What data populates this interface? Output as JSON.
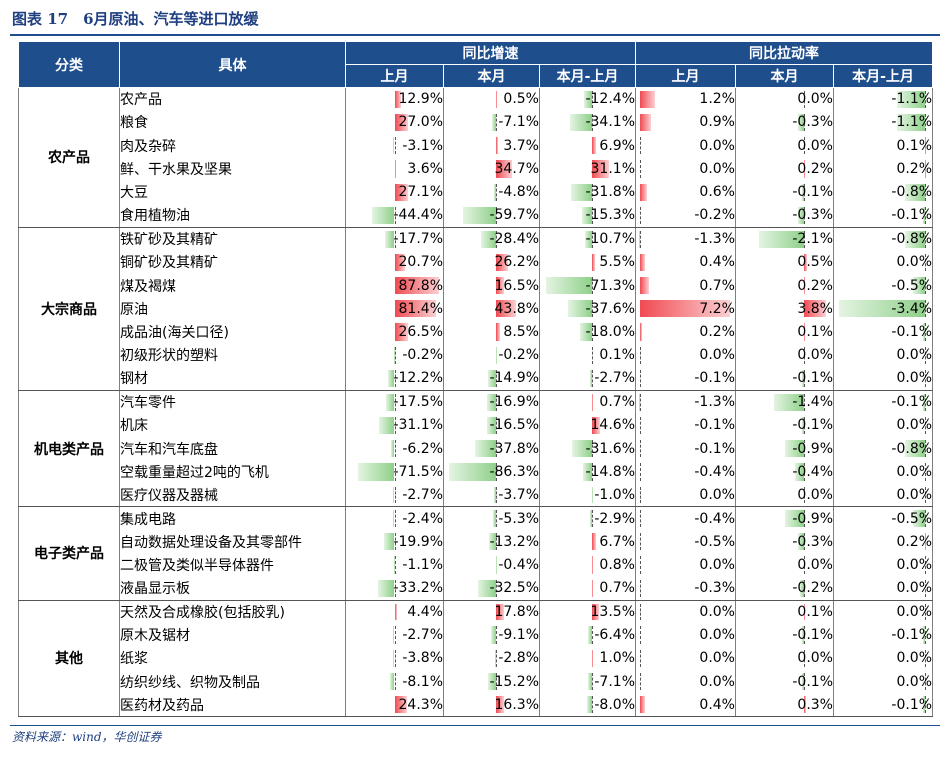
{
  "title": "图表 17　6月原油、汽车等进口放缓",
  "source": "资料来源：wind，华创证券",
  "colors": {
    "header_bg": "#1e4e8c",
    "positive_bar": "#f04a52",
    "negative_bar": "#8fd08a"
  },
  "headers": {
    "category": "分类",
    "item": "具体",
    "group_growth": "同比增速",
    "group_pull": "同比拉动率",
    "last_month": "上月",
    "this_month": "本月",
    "diff": "本月-上月"
  },
  "groups": [
    {
      "name": "农产品",
      "rows": [
        {
          "item": "农产品",
          "g_last": "12.9%",
          "g_cur": "0.5%",
          "g_diff": "-12.4%",
          "p_last": "1.2%",
          "p_cur": "0.0%",
          "p_diff": "-1.1%"
        },
        {
          "item": "粮食",
          "g_last": "27.0%",
          "g_cur": "-7.1%",
          "g_diff": "-34.1%",
          "p_last": "0.9%",
          "p_cur": "-0.3%",
          "p_diff": "-1.1%"
        },
        {
          "item": "肉及杂碎",
          "g_last": "-3.1%",
          "g_cur": "3.7%",
          "g_diff": "6.9%",
          "p_last": "0.0%",
          "p_cur": "0.0%",
          "p_diff": "0.1%"
        },
        {
          "item": "鲜、干水果及坚果",
          "g_last": "3.6%",
          "g_cur": "34.7%",
          "g_diff": "31.1%",
          "p_last": "0.0%",
          "p_cur": "0.2%",
          "p_diff": "0.2%"
        },
        {
          "item": "大豆",
          "g_last": "27.1%",
          "g_cur": "-4.8%",
          "g_diff": "-31.8%",
          "p_last": "0.6%",
          "p_cur": "-0.1%",
          "p_diff": "-0.8%"
        },
        {
          "item": "食用植物油",
          "g_last": "-44.4%",
          "g_cur": "-59.7%",
          "g_diff": "-15.3%",
          "p_last": "-0.2%",
          "p_cur": "-0.3%",
          "p_diff": "-0.1%"
        }
      ]
    },
    {
      "name": "大宗商品",
      "rows": [
        {
          "item": "铁矿砂及其精矿",
          "g_last": "-17.7%",
          "g_cur": "-28.4%",
          "g_diff": "-10.7%",
          "p_last": "-1.3%",
          "p_cur": "-2.1%",
          "p_diff": "-0.8%"
        },
        {
          "item": "铜矿砂及其精矿",
          "g_last": "20.7%",
          "g_cur": "26.2%",
          "g_diff": "5.5%",
          "p_last": "0.4%",
          "p_cur": "0.5%",
          "p_diff": "0.0%"
        },
        {
          "item": "煤及褐煤",
          "g_last": "87.8%",
          "g_cur": "16.5%",
          "g_diff": "-71.3%",
          "p_last": "0.7%",
          "p_cur": "0.2%",
          "p_diff": "-0.5%"
        },
        {
          "item": "原油",
          "g_last": "81.4%",
          "g_cur": "43.8%",
          "g_diff": "-37.6%",
          "p_last": "7.2%",
          "p_cur": "3.8%",
          "p_diff": "-3.4%"
        },
        {
          "item": "成品油(海关口径)",
          "g_last": "26.5%",
          "g_cur": "8.5%",
          "g_diff": "-18.0%",
          "p_last": "0.2%",
          "p_cur": "0.1%",
          "p_diff": "-0.1%"
        },
        {
          "item": "初级形状的塑料",
          "g_last": "-0.2%",
          "g_cur": "-0.2%",
          "g_diff": "0.1%",
          "p_last": "0.0%",
          "p_cur": "0.0%",
          "p_diff": "0.0%"
        },
        {
          "item": "钢材",
          "g_last": "-12.2%",
          "g_cur": "-14.9%",
          "g_diff": "-2.7%",
          "p_last": "-0.1%",
          "p_cur": "-0.1%",
          "p_diff": "0.0%"
        }
      ]
    },
    {
      "name": "机电类产品",
      "rows": [
        {
          "item": "汽车零件",
          "g_last": "-17.5%",
          "g_cur": "-16.9%",
          "g_diff": "0.7%",
          "p_last": "-1.3%",
          "p_cur": "-1.4%",
          "p_diff": "-0.1%"
        },
        {
          "item": "机床",
          "g_last": "-31.1%",
          "g_cur": "-16.5%",
          "g_diff": "14.6%",
          "p_last": "-0.1%",
          "p_cur": "-0.1%",
          "p_diff": "0.0%"
        },
        {
          "item": "汽车和汽车底盘",
          "g_last": "-6.2%",
          "g_cur": "-37.8%",
          "g_diff": "-31.6%",
          "p_last": "-0.1%",
          "p_cur": "-0.9%",
          "p_diff": "-0.8%"
        },
        {
          "item": "空载重量超过2吨的飞机",
          "g_last": "-71.5%",
          "g_cur": "-86.3%",
          "g_diff": "-14.8%",
          "p_last": "-0.4%",
          "p_cur": "-0.4%",
          "p_diff": "0.0%"
        },
        {
          "item": "医疗仪器及器械",
          "g_last": "-2.7%",
          "g_cur": "-3.7%",
          "g_diff": "-1.0%",
          "p_last": "0.0%",
          "p_cur": "0.0%",
          "p_diff": "0.0%"
        }
      ]
    },
    {
      "name": "电子类产品",
      "rows": [
        {
          "item": "集成电路",
          "g_last": "-2.4%",
          "g_cur": "-5.3%",
          "g_diff": "-2.9%",
          "p_last": "-0.4%",
          "p_cur": "-0.9%",
          "p_diff": "-0.5%"
        },
        {
          "item": "自动数据处理设备及其零部件",
          "g_last": "-19.9%",
          "g_cur": "-13.2%",
          "g_diff": "6.7%",
          "p_last": "-0.5%",
          "p_cur": "-0.3%",
          "p_diff": "0.2%"
        },
        {
          "item": "二极管及类似半导体器件",
          "g_last": "-1.1%",
          "g_cur": "-0.4%",
          "g_diff": "0.8%",
          "p_last": "0.0%",
          "p_cur": "0.0%",
          "p_diff": "0.0%"
        },
        {
          "item": "液晶显示板",
          "g_last": "-33.2%",
          "g_cur": "-32.5%",
          "g_diff": "0.7%",
          "p_last": "-0.3%",
          "p_cur": "-0.2%",
          "p_diff": "0.0%"
        }
      ]
    },
    {
      "name": "其他",
      "rows": [
        {
          "item": "天然及合成橡胶(包括胶乳)",
          "g_last": "4.4%",
          "g_cur": "17.8%",
          "g_diff": "13.5%",
          "p_last": "0.0%",
          "p_cur": "0.1%",
          "p_diff": "0.0%"
        },
        {
          "item": "原木及锯材",
          "g_last": "-2.7%",
          "g_cur": "-9.1%",
          "g_diff": "-6.4%",
          "p_last": "0.0%",
          "p_cur": "-0.1%",
          "p_diff": "-0.1%"
        },
        {
          "item": "纸浆",
          "g_last": "-3.8%",
          "g_cur": "-2.8%",
          "g_diff": "1.0%",
          "p_last": "0.0%",
          "p_cur": "0.0%",
          "p_diff": "0.0%"
        },
        {
          "item": "纺织纱线、织物及制品",
          "g_last": "-8.1%",
          "g_cur": "-15.2%",
          "g_diff": "-7.1%",
          "p_last": "0.0%",
          "p_cur": "-0.1%",
          "p_diff": "0.0%"
        },
        {
          "item": "医药材及药品",
          "g_last": "24.3%",
          "g_cur": "16.3%",
          "g_diff": "-8.0%",
          "p_last": "0.4%",
          "p_cur": "0.3%",
          "p_diff": "-0.1%"
        }
      ]
    }
  ]
}
